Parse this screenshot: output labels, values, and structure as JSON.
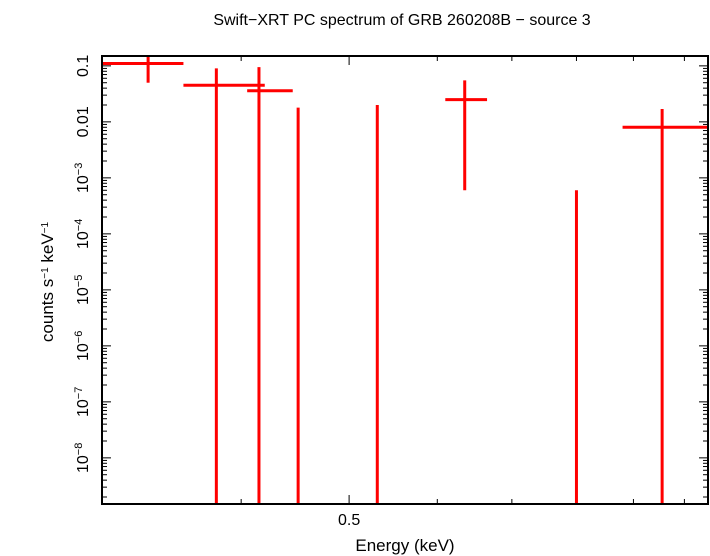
{
  "chart_data": {
    "type": "scatter",
    "title": "Swift−XRT PC spectrum of GRB 260208B − source 3",
    "xlabel": "Energy (keV)",
    "ylabel": {
      "text": "counts s",
      "exp1": "−1",
      "mid": " keV",
      "exp2": "−1"
    },
    "x_scale": "log",
    "y_scale": "log",
    "xlim": [
      0.3,
      1.05
    ],
    "ylim": [
      1.5e-09,
      0.15
    ],
    "x_ticks": [
      {
        "value": 0.5,
        "label": "0.5"
      }
    ],
    "x_minor_ticks": [
      0.4,
      0.6,
      0.7,
      0.8,
      0.9,
      1.0
    ],
    "y_ticks": [
      {
        "value": 0.1,
        "base": "0.1",
        "exp": ""
      },
      {
        "value": 0.01,
        "base": "0.01",
        "exp": ""
      },
      {
        "value": 0.001,
        "base": "10",
        "exp": "−3"
      },
      {
        "value": 0.0001,
        "base": "10",
        "exp": "−4"
      },
      {
        "value": 1e-05,
        "base": "10",
        "exp": "−5"
      },
      {
        "value": 1e-06,
        "base": "10",
        "exp": "−6"
      },
      {
        "value": 1e-07,
        "base": "10",
        "exp": "−7"
      },
      {
        "value": 1e-08,
        "base": "10",
        "exp": "−8"
      }
    ],
    "grid": false,
    "color": "#ff0000",
    "points": [
      {
        "x": 0.33,
        "xlo": 0.3,
        "xhi": 0.355,
        "y": 0.11,
        "ylo": 0.05,
        "yhi": 0.16
      },
      {
        "x": 0.38,
        "xlo": 0.355,
        "xhi": 0.42,
        "y": 0.045,
        "ylo": null,
        "yhi": 0.09
      },
      {
        "x": 0.415,
        "xlo": 0.405,
        "xhi": 0.445,
        "y": 0.036,
        "ylo": null,
        "yhi": 0.095
      },
      {
        "x": 0.45,
        "xlo": null,
        "xhi": null,
        "y": null,
        "ylo": null,
        "yhi": 0.018
      },
      {
        "x": 0.53,
        "xlo": null,
        "xhi": null,
        "y": null,
        "ylo": null,
        "yhi": 0.02
      },
      {
        "x": 0.635,
        "xlo": 0.61,
        "xhi": 0.665,
        "y": 0.025,
        "ylo": 0.0006,
        "yhi": 0.055
      },
      {
        "x": 0.8,
        "xlo": null,
        "xhi": null,
        "y": null,
        "ylo": null,
        "yhi": 0.0006
      },
      {
        "x": 0.955,
        "xlo": 0.88,
        "xhi": 1.05,
        "y": 0.008,
        "ylo": null,
        "yhi": 0.017
      }
    ]
  }
}
